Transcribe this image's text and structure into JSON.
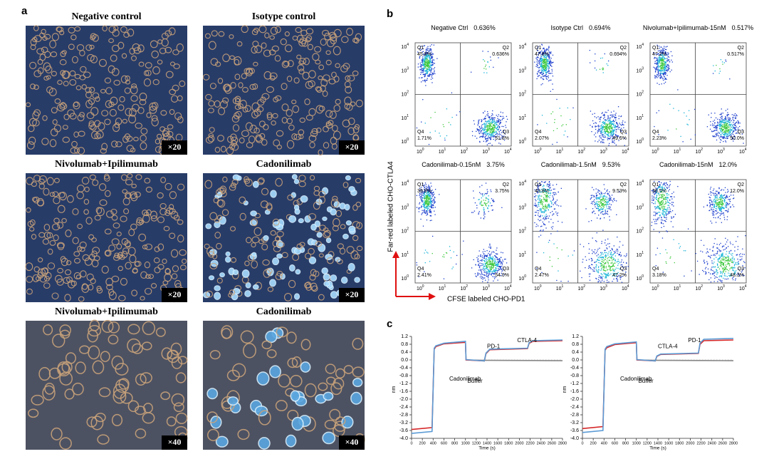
{
  "figure": {
    "panel_a": {
      "label": "a",
      "images": [
        {
          "title": "Negative control",
          "magnification": "×20"
        },
        {
          "title": "Isotype control",
          "magnification": "×20"
        },
        {
          "title": "Nivolumab+Ipilimumab",
          "magnification": "×20"
        },
        {
          "title": "Cadonilimab",
          "magnification": "×20"
        },
        {
          "title": "Nivolumab+Ipilimumab",
          "magnification": "×40"
        },
        {
          "title": "Cadonilimab",
          "magnification": "×40"
        }
      ]
    },
    "panel_b": {
      "label": "b",
      "quadrant_names": [
        "Q1",
        "Q2",
        "Q3",
        "Q4"
      ],
      "tick_base": "10",
      "tick_exponents": [
        0,
        1,
        2,
        3,
        4
      ],
      "y_axis_label": "Far-red labeled CHO-CTLA4",
      "x_axis_label": "CFSE labeled CHO-PD1",
      "plots": [
        {
          "title": "Negative Ctrl",
          "percent": "0.636%",
          "q1": "45.8%",
          "q2": "0.636%",
          "q3": "51.8%",
          "q4": "1.71%"
        },
        {
          "title": "Isotype Ctrl",
          "percent": "0.694%",
          "q1": "47.8%",
          "q2": "0.694%",
          "q3": "49.6%",
          "q4": "2.07%"
        },
        {
          "title": "Nivolumab+Ipilimumab-15nM",
          "percent": "0.517%",
          "q1": "47.2%",
          "q2": "0.517%",
          "q3": "50.0%",
          "q4": "2.23%"
        },
        {
          "title": "Cadonilimab-0.15nM",
          "percent": "3.75%",
          "q1": "39.8%",
          "q2": "3.75%",
          "q3": "54.0%",
          "q4": "2.41%"
        },
        {
          "title": "Cadonilimab-1.5nM",
          "percent": "9.53%",
          "q1": "40.8%",
          "q2": "9.53%",
          "q3": "47.2%",
          "q4": "2.47%"
        },
        {
          "title": "Cadonilimab-15nM",
          "percent": "12.0%",
          "q1": "36.5%",
          "q2": "12.0%",
          "q3": "48.3%",
          "q4": "3.18%"
        }
      ]
    },
    "panel_c": {
      "label": "c",
      "charts": [
        {
          "type": "line",
          "xlabel": "Time (s)",
          "ylabel": "nm",
          "annotations": [
            "Cadonilimab",
            "Buffer",
            "PD-1",
            "CTLA-4"
          ],
          "xlim": [
            0,
            2800
          ],
          "xticks": [
            0,
            200,
            400,
            600,
            800,
            1000,
            1200,
            1400,
            1600,
            1800,
            2000,
            2200,
            2400,
            2600,
            2800
          ],
          "ylim": [
            -4,
            1.2
          ],
          "yticks": [
            1.2,
            0.8,
            0.4,
            {
              "value": 0,
              "label": "0.0"
            },
            -0.4,
            -0.8,
            -1.2,
            -1.6,
            {
              "value": -2,
              "label": "-2.0"
            },
            -2.4,
            -2.8,
            -3.2,
            -3.6,
            {
              "value": -4,
              "label": "-4.0"
            }
          ],
          "x": [
            0,
            380,
            420,
            450,
            600,
            1000,
            1010,
            1350,
            1380,
            1450,
            2150,
            2180,
            2250,
            2800
          ],
          "series": [
            {
              "color": "#888888",
              "values": [
                null,
                null,
                null,
                null,
                null,
                null,
                0.0,
                -0.02,
                -0.02,
                -0.02,
                -0.03,
                -0.03,
                -0.03,
                -0.04
              ]
            },
            {
              "color": "#d62728",
              "values": [
                -3.55,
                -3.45,
                0.55,
                0.68,
                0.82,
                0.9,
                0.0,
                -0.05,
                0.32,
                0.52,
                0.58,
                0.85,
                0.95,
                0.98
              ]
            },
            {
              "color": "#5b9bd5",
              "values": [
                -3.75,
                -3.65,
                0.6,
                0.72,
                0.85,
                0.95,
                0.02,
                -0.05,
                0.35,
                0.55,
                0.6,
                0.88,
                0.98,
                1.02
              ]
            }
          ]
        },
        {
          "type": "line",
          "xlabel": "Time (s)",
          "ylabel": "nm",
          "annotations": [
            "Cadonilimab",
            "Buffer",
            "CTLA-4",
            "PD-1"
          ],
          "xlim": [
            0,
            2800
          ],
          "xticks": [
            0,
            200,
            400,
            600,
            800,
            1000,
            1200,
            1400,
            1600,
            1800,
            2000,
            2200,
            2400,
            2600,
            2800
          ],
          "ylim": [
            -4,
            1.2
          ],
          "yticks": [
            1.2,
            0.8,
            0.4,
            {
              "value": 0,
              "label": "0.0"
            },
            -0.4,
            -0.8,
            -1.2,
            -1.6,
            {
              "value": -2,
              "label": "-2.0"
            },
            -2.4,
            -2.8,
            -3.2,
            -3.6,
            {
              "value": -4,
              "label": "-4.0"
            }
          ],
          "x": [
            0,
            380,
            420,
            450,
            600,
            1000,
            1010,
            1350,
            1380,
            1450,
            2150,
            2180,
            2250,
            2800
          ],
          "series": [
            {
              "color": "#888888",
              "values": [
                null,
                null,
                null,
                null,
                null,
                null,
                0.0,
                -0.02,
                -0.02,
                -0.02,
                -0.03,
                -0.03,
                -0.03,
                -0.04
              ]
            },
            {
              "color": "#d62728",
              "values": [
                -3.5,
                -3.4,
                0.5,
                0.62,
                0.78,
                0.88,
                0.0,
                -0.05,
                0.18,
                0.28,
                0.33,
                0.8,
                0.98,
                1.02
              ]
            },
            {
              "color": "#5b9bd5",
              "values": [
                -3.7,
                -3.6,
                0.55,
                0.68,
                0.82,
                0.92,
                0.02,
                -0.05,
                0.2,
                0.3,
                0.35,
                0.85,
                1.05,
                1.1
              ]
            }
          ]
        }
      ]
    }
  }
}
